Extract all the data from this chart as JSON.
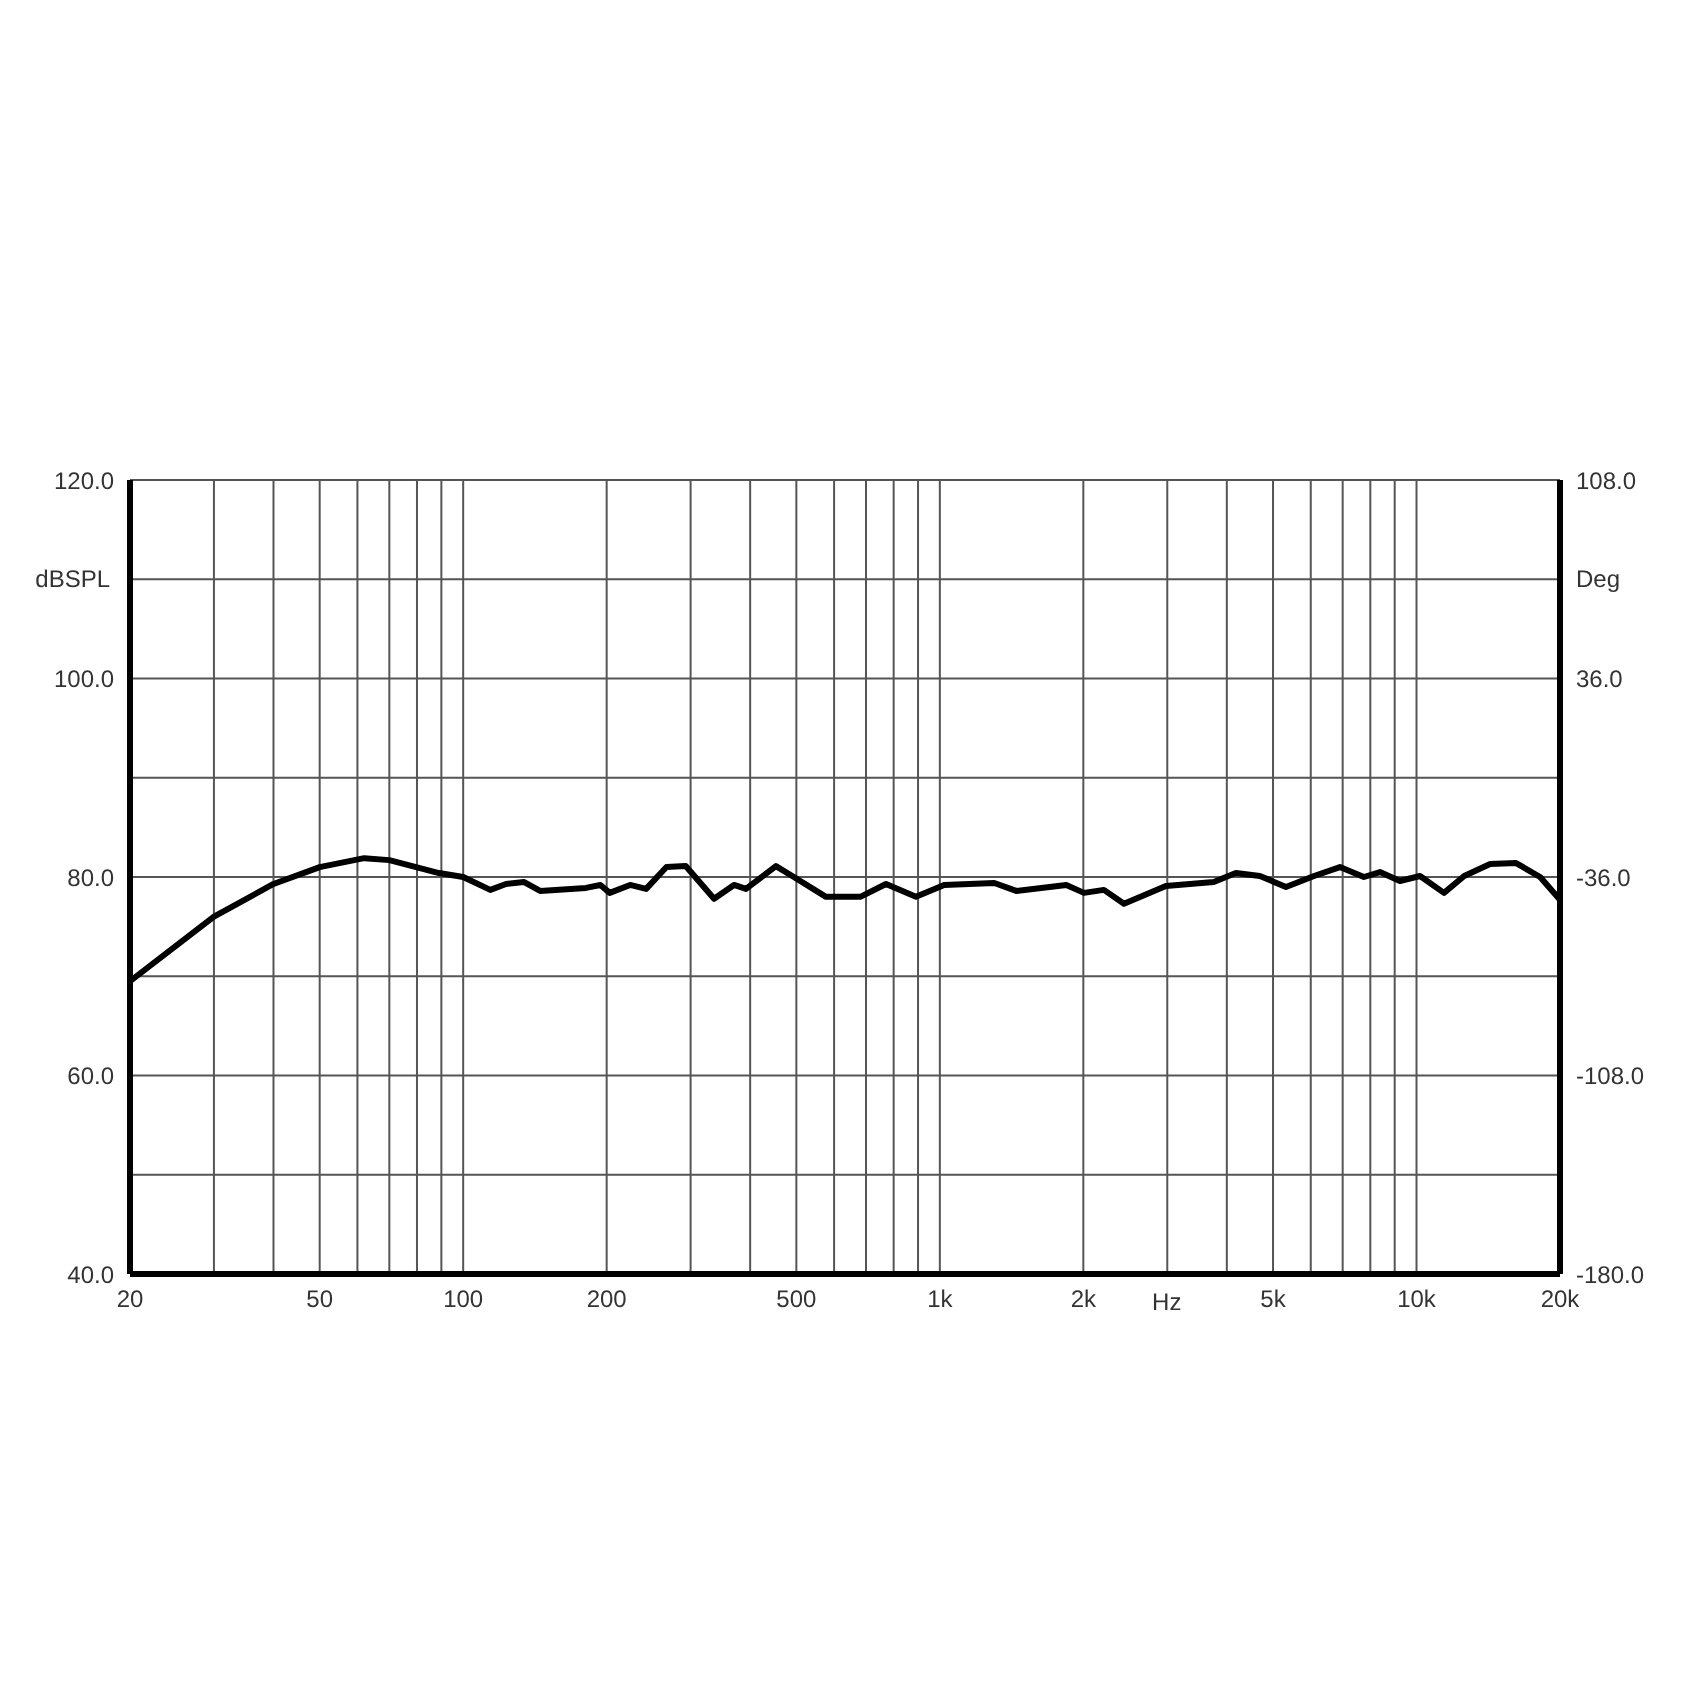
{
  "chart_data": {
    "type": "line",
    "xlabel": "Hz",
    "ylabel": "dBSPL",
    "y2label": "Deg",
    "x": [
      20,
      30,
      40,
      50,
      62,
      70,
      89,
      100,
      114,
      123,
      134,
      145,
      181,
      194,
      203,
      224,
      242,
      267,
      293,
      336,
      370,
      392,
      453,
      494,
      577,
      681,
      771,
      891,
      1021,
      1301,
      1446,
      1842,
      2006,
      2209,
      2434,
      2980,
      3755,
      4178,
      4694,
      5322,
      6096,
      6907,
      7757,
      8380,
      9231,
      10170,
      11420,
      12590,
      14270,
      16180,
      18170,
      20000
    ],
    "series": [
      {
        "color": "#000000",
        "values": [
          69.5,
          76.0,
          79.3,
          81.0,
          81.9,
          81.7,
          80.4,
          80.0,
          78.7,
          79.3,
          79.5,
          78.6,
          78.9,
          79.2,
          78.4,
          79.2,
          78.8,
          81.0,
          81.1,
          77.8,
          79.2,
          78.8,
          81.1,
          80.0,
          78.0,
          78.0,
          79.3,
          78.0,
          79.2,
          79.4,
          78.6,
          79.2,
          78.4,
          78.7,
          77.3,
          79.1,
          79.5,
          80.4,
          80.1,
          79.0,
          80.1,
          81.0,
          80.0,
          80.5,
          79.6,
          80.1,
          78.4,
          80.1,
          81.3,
          81.4,
          80.0,
          77.7
        ]
      }
    ],
    "log": "x",
    "xlim": [
      20,
      20000
    ],
    "xticks": [
      20,
      {
        "value": 30,
        "label": null
      },
      {
        "value": 40,
        "label": null
      },
      50,
      {
        "value": 60,
        "label": null
      },
      {
        "value": 70,
        "label": null
      },
      {
        "value": 80,
        "label": null
      },
      {
        "value": 90,
        "label": null
      },
      100,
      200,
      {
        "value": 300,
        "label": null
      },
      {
        "value": 400,
        "label": null
      },
      500,
      {
        "value": 600,
        "label": null
      },
      {
        "value": 700,
        "label": null
      },
      {
        "value": 800,
        "label": null
      },
      {
        "value": 900,
        "label": null
      },
      {
        "value": 1000,
        "label": "1k"
      },
      {
        "value": 2000,
        "label": "2k"
      },
      {
        "value": 3000,
        "label": null
      },
      {
        "value": 4000,
        "label": null
      },
      {
        "value": 5000,
        "label": "5k"
      },
      {
        "value": 6000,
        "label": null
      },
      {
        "value": 7000,
        "label": null
      },
      {
        "value": 8000,
        "label": null
      },
      {
        "value": 9000,
        "label": null
      },
      {
        "value": 10000,
        "label": "10k"
      },
      {
        "value": 20000,
        "label": "20k"
      }
    ],
    "ylim": [
      40,
      120
    ],
    "yticks": [
      {
        "value": 40,
        "label": "40.0"
      },
      {
        "value": 50,
        "label": null
      },
      {
        "value": 60,
        "label": "60.0"
      },
      {
        "value": 70,
        "label": null
      },
      {
        "value": 80,
        "label": "80.0"
      },
      {
        "value": 90,
        "label": null
      },
      {
        "value": 100,
        "label": "100.0"
      },
      {
        "value": 110,
        "label": null
      },
      {
        "value": 120,
        "label": "120.0"
      }
    ],
    "y2lim": [
      -180,
      108
    ],
    "y2ticks": [
      {
        "value": -180,
        "label": "-180.0"
      },
      {
        "value": -108,
        "label": "-108.0"
      },
      {
        "value": -36,
        "label": "-36.0"
      },
      {
        "value": 36,
        "label": "36.0"
      },
      {
        "value": 108,
        "label": "108.0"
      }
    ],
    "grid": true,
    "line_style": "solid"
  }
}
